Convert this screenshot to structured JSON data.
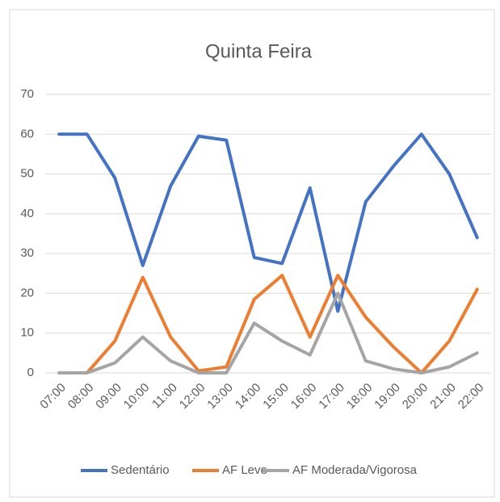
{
  "chart_data": {
    "type": "line",
    "title": "Quinta Feira",
    "categories": [
      "07:00",
      "08:00",
      "09:00",
      "10:00",
      "11:00",
      "12:00",
      "13:00",
      "14:00",
      "15:00",
      "16:00",
      "17:00",
      "18:00",
      "19:00",
      "20:00",
      "21:00",
      "22:00"
    ],
    "series": [
      {
        "name": "Sedentário",
        "color": "#4472c4",
        "values": [
          60,
          60,
          49,
          27,
          47,
          59.5,
          58.5,
          29,
          27.5,
          46.5,
          15.5,
          43,
          52,
          60,
          50,
          34
        ]
      },
      {
        "name": "AF Leve",
        "color": "#ed7d31",
        "values": [
          0,
          0,
          8,
          24,
          9,
          0.5,
          1.5,
          18.5,
          24.5,
          9,
          24.5,
          14,
          6.5,
          0,
          8,
          21
        ]
      },
      {
        "name": "AF Moderada/Vigorosa",
        "color": "#a5a5a5",
        "values": [
          0,
          0,
          2.5,
          9,
          3,
          0,
          0,
          12.5,
          8,
          4.5,
          20,
          3,
          1,
          0,
          1.5,
          5
        ]
      }
    ],
    "ylim": [
      0,
      70
    ],
    "yticks": [
      0,
      10,
      20,
      30,
      40,
      50,
      60,
      70
    ],
    "grid": true,
    "legend": "bottom"
  }
}
